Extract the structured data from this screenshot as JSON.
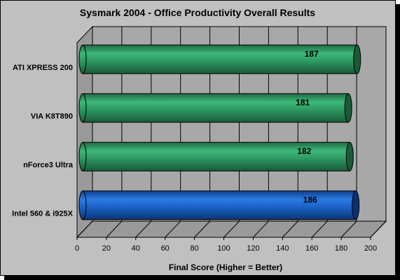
{
  "chart_data": {
    "type": "bar",
    "orientation": "horizontal",
    "title": "Sysmark 2004 - Office Productivity Overall Results",
    "xlabel": "Final Score (Higher = Better)",
    "ylabel": "",
    "categories": [
      "ATI XPRESS 200",
      "VIA K8T890",
      "nForce3 Ultra",
      "Intel 560 & i925X"
    ],
    "values": [
      187,
      181,
      182,
      186
    ],
    "value_labels": [
      "187",
      "181",
      "182",
      "186"
    ],
    "bar_colors": [
      "#2e8b57",
      "#2e8b57",
      "#2e8b57",
      "#1c5fc0"
    ],
    "xlim": [
      0,
      200
    ],
    "ticks": [
      "0",
      "20",
      "40",
      "60",
      "80",
      "100",
      "120",
      "140",
      "160",
      "180",
      "200"
    ],
    "grid": true,
    "three_d": true,
    "legend": "none"
  }
}
